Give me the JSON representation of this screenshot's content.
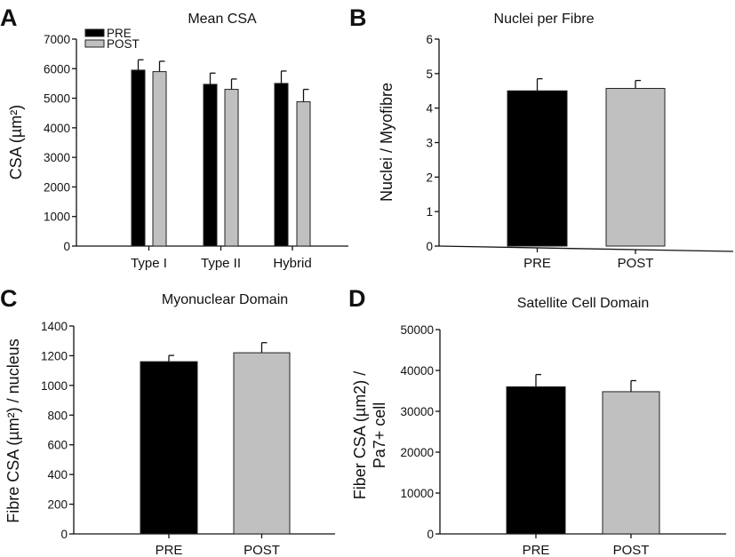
{
  "chart_data": [
    {
      "panel_label": "A",
      "type": "bar",
      "title": "Mean CSA",
      "xlabel": "",
      "ylabel": "CSA (µm²)",
      "ylim": [
        0,
        7000
      ],
      "yticks": [
        "0",
        "1000",
        "2000",
        "3000",
        "4000",
        "5000",
        "6000",
        "7000"
      ],
      "categories": [
        "Type I",
        "Type II",
        "Hybrid"
      ],
      "legend": {
        "position": "top-left",
        "entries": [
          "PRE",
          "POST"
        ]
      },
      "series": [
        {
          "name": "PRE",
          "color": "#000000",
          "values": [
            5950,
            5470,
            5500
          ],
          "error": [
            350,
            380,
            420
          ]
        },
        {
          "name": "POST",
          "color": "#c0c0c0",
          "values": [
            5900,
            5300,
            4880
          ],
          "error": [
            350,
            350,
            420
          ]
        }
      ]
    },
    {
      "panel_label": "B",
      "type": "bar",
      "title": "Nuclei per Fibre",
      "xlabel": "",
      "ylabel": "Nuclei / Myofibre",
      "ylim": [
        0,
        6
      ],
      "yticks": [
        "0",
        "1",
        "2",
        "3",
        "4",
        "5",
        "6"
      ],
      "categories": [
        "PRE",
        "POST"
      ],
      "values": [
        4.5,
        4.57
      ],
      "error": [
        0.35,
        0.23
      ],
      "colors": [
        "#000000",
        "#c0c0c0"
      ]
    },
    {
      "panel_label": "C",
      "type": "bar",
      "title": "Myonuclear Domain",
      "xlabel": "",
      "ylabel": "Fibre CSA (µm²) / nucleus",
      "ylim": [
        0,
        1400
      ],
      "yticks": [
        "0",
        "200",
        "400",
        "600",
        "800",
        "1000",
        "1200",
        "1400"
      ],
      "categories": [
        "PRE",
        "POST"
      ],
      "values": [
        1160,
        1220
      ],
      "error": [
        42,
        68
      ],
      "colors": [
        "#000000",
        "#c0c0c0"
      ]
    },
    {
      "panel_label": "D",
      "type": "bar",
      "title": "Satellite Cell Domain",
      "xlabel": "",
      "ylabel": [
        "Fiber CSA (µm2) /",
        "Pa7+ cell"
      ],
      "ylim": [
        0,
        50000
      ],
      "yticks": [
        "0",
        "10000",
        "20000",
        "30000",
        "40000",
        "50000"
      ],
      "categories": [
        "PRE",
        "POST"
      ],
      "values": [
        36000,
        34800
      ],
      "error": [
        3000,
        2700
      ],
      "colors": [
        "#000000",
        "#c0c0c0"
      ]
    }
  ]
}
